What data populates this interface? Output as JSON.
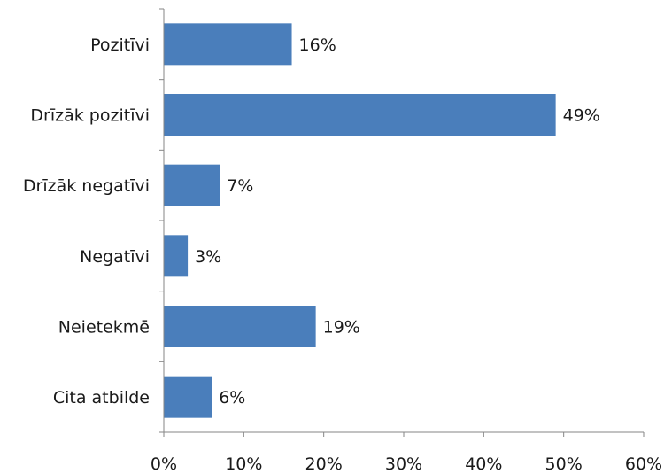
{
  "chart_data": {
    "type": "bar",
    "orientation": "horizontal",
    "categories": [
      "Pozitīvi",
      "Drīzāk pozitīvi",
      "Drīzāk negatīvi",
      "Negatīvi",
      "Neietekmē",
      "Cita atbilde"
    ],
    "values": [
      16,
      49,
      7,
      3,
      19,
      6
    ],
    "value_labels": [
      "16%",
      "49%",
      "7%",
      "3%",
      "19%",
      "6%"
    ],
    "x_ticks": [
      "0%",
      "10%",
      "20%",
      "30%",
      "40%",
      "50%",
      "60%"
    ],
    "xlim": [
      0,
      60
    ],
    "grid": false,
    "legend": "none",
    "bar_color": "#4a7ebb",
    "axis_color": "#868686"
  }
}
